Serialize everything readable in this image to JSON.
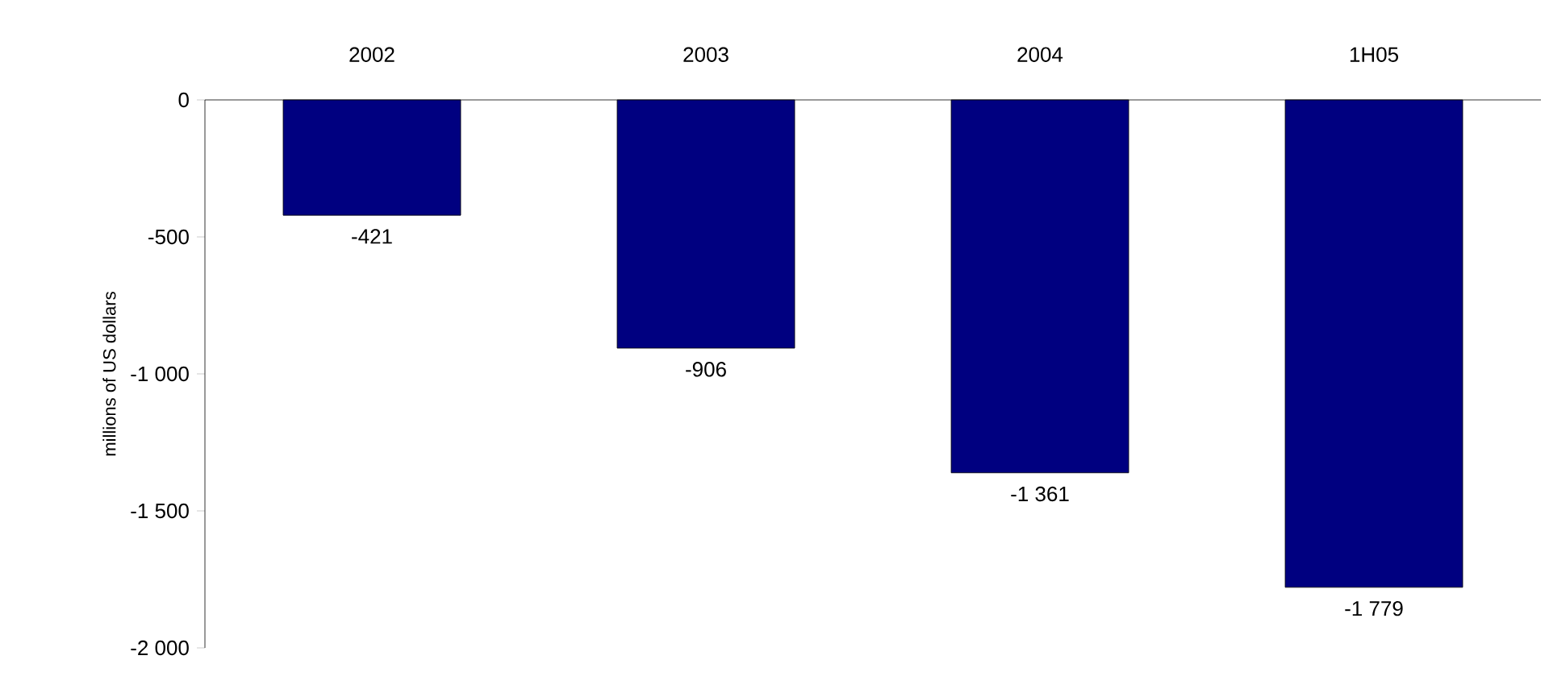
{
  "chart_data": {
    "type": "bar",
    "ylabel": "millions of US dollars",
    "categories": [
      "2002",
      "2003",
      "2004",
      "1H05"
    ],
    "values": [
      -421,
      -906,
      -1361,
      -1779
    ],
    "value_labels": [
      "-421",
      "-906",
      "-1 361",
      "-1 779"
    ],
    "color": "#000080",
    "ylim": [
      -2000,
      0
    ],
    "yticks": [
      0,
      {
        "value": -500,
        "label": "-500"
      },
      {
        "value": -1000,
        "label": "-1 000"
      },
      {
        "value": -1500,
        "label": "-1 500"
      },
      {
        "value": -2000,
        "label": "-2 000"
      }
    ]
  }
}
